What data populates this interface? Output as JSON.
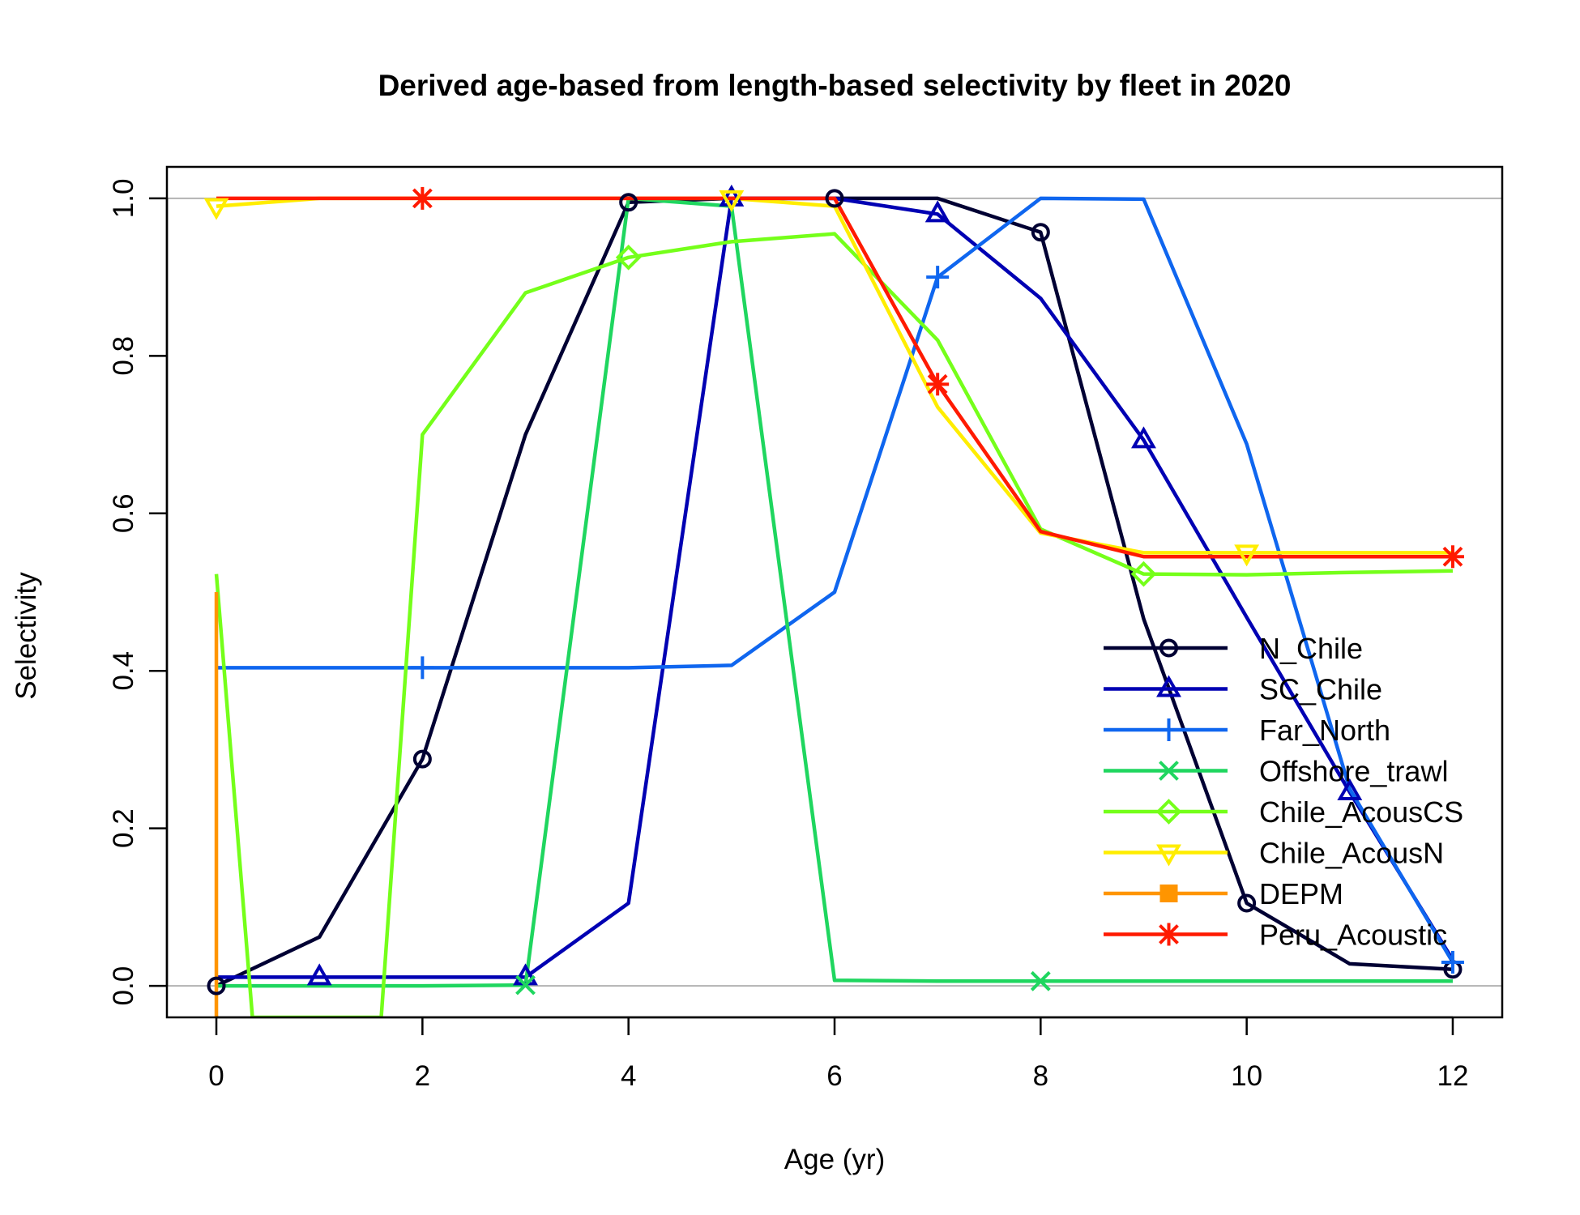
{
  "chart_data": {
    "type": "line",
    "title": "Derived age-based from length-based selectivity by fleet in 2020",
    "xlabel": "Age (yr)",
    "ylabel": "Selectivity",
    "xlim": [
      -0.48,
      12.48
    ],
    "ylim": [
      -0.04,
      1.04
    ],
    "x_ticks": [
      0,
      2,
      4,
      6,
      8,
      10,
      12
    ],
    "y_ticks": [
      0.0,
      0.2,
      0.4,
      0.6,
      0.8,
      1.0
    ],
    "y_tick_labels": [
      "0.0",
      "0.2",
      "0.4",
      "0.6",
      "0.8",
      "1.0"
    ],
    "reference_lines": [
      0,
      1
    ],
    "reference_line_color": "#b3b3b3",
    "legend_position": "bottom-right",
    "x": [
      0,
      1,
      2,
      3,
      4,
      5,
      6,
      7,
      8,
      9,
      10,
      11,
      12
    ],
    "series": [
      {
        "name": "N_Chile",
        "color": "#000033",
        "marker": "circle",
        "marker_x": [
          0,
          2,
          4,
          6,
          8,
          10,
          12
        ],
        "values": [
          0.0,
          0.062,
          0.288,
          0.7,
          0.995,
          1.0,
          1.0,
          1.0,
          0.957,
          0.466,
          0.105,
          0.028,
          0.021
        ]
      },
      {
        "name": "SC_Chile",
        "color": "#0000b3",
        "marker": "triangle",
        "marker_x": [
          1,
          3,
          5,
          7,
          9,
          11
        ],
        "values": [
          0.011,
          0.011,
          0.011,
          0.011,
          0.105,
          1.0,
          1.0,
          0.98,
          0.873,
          0.693,
          0.468,
          0.246,
          0.033
        ]
      },
      {
        "name": "Far_North",
        "color": "#0f66ef",
        "marker": "plus",
        "marker_x": [
          2,
          7,
          12
        ],
        "values": [
          0.404,
          0.404,
          0.404,
          0.404,
          0.404,
          0.407,
          0.5,
          0.9,
          1.0,
          0.999,
          0.688,
          0.25,
          0.03
        ]
      },
      {
        "name": "Offshore_trawl",
        "color": "#1fd65f",
        "marker": "cross",
        "marker_x": [
          3,
          8
        ],
        "values": [
          0.0,
          0.0,
          0.0,
          0.001,
          1.0,
          0.99,
          0.007,
          0.006,
          0.006,
          0.006,
          0.006,
          0.006,
          0.006
        ]
      },
      {
        "name": "Chile_AcousCS",
        "color": "#75ff1a",
        "marker": "diamond",
        "marker_x": [
          4,
          9
        ],
        "x": [
          0,
          0.35,
          1.6,
          2,
          3,
          4,
          5,
          6,
          7,
          8,
          9,
          10,
          11,
          12
        ],
        "values": [
          0.523,
          -0.04,
          -0.04,
          0.7,
          0.88,
          0.925,
          0.945,
          0.955,
          0.82,
          0.58,
          0.523,
          0.522,
          0.525,
          0.527
        ]
      },
      {
        "name": "Chile_AcousN",
        "color": "#ffed00",
        "marker": "triangle-down",
        "marker_x": [
          0,
          5,
          10
        ],
        "values": [
          0.99,
          1.0,
          1.0,
          1.0,
          1.0,
          1.0,
          0.99,
          0.735,
          0.575,
          0.55,
          0.55,
          0.55,
          0.55
        ]
      },
      {
        "name": "DEPM",
        "color": "#ff9500",
        "marker": "square",
        "marker_x": [],
        "x": [
          0,
          0
        ],
        "values": [
          0.5,
          -0.04
        ]
      },
      {
        "name": "Peru_Acoustic",
        "color": "#ff1a00",
        "marker": "asterisk",
        "marker_x": [
          2,
          7,
          12
        ],
        "values": [
          1.0,
          1.0,
          1.0,
          1.0,
          1.0,
          1.0,
          1.0,
          0.764,
          0.577,
          0.545,
          0.545,
          0.545,
          0.545
        ]
      }
    ]
  }
}
